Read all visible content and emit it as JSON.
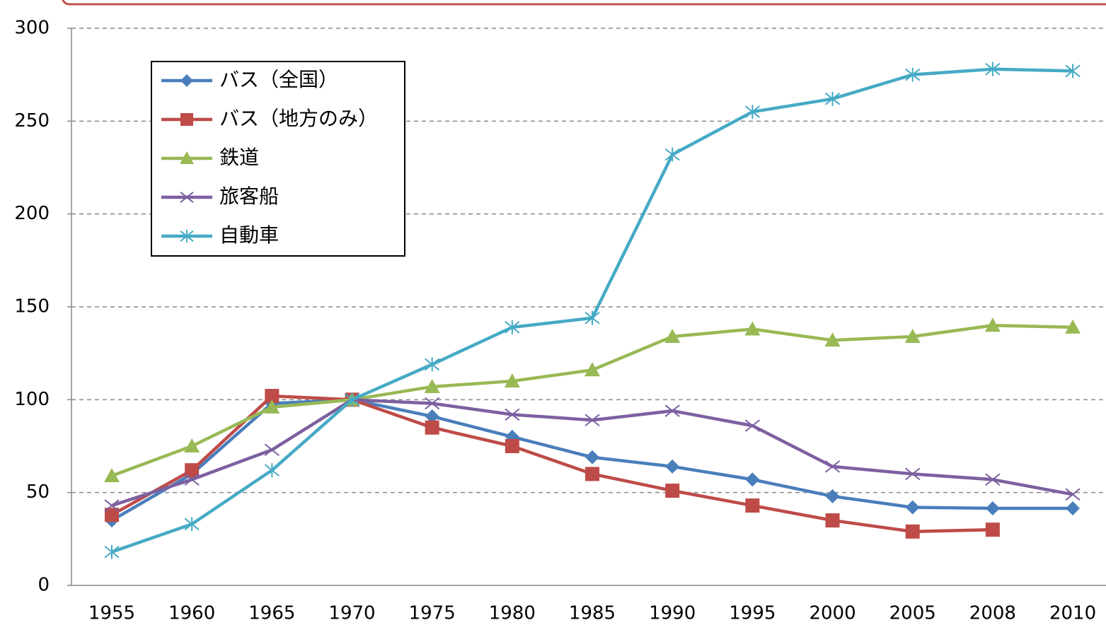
{
  "chart_data": {
    "type": "line",
    "categories": [
      "1955",
      "1960",
      "1965",
      "1970",
      "1975",
      "1980",
      "1985",
      "1990",
      "1995",
      "2000",
      "2005",
      "2008",
      "2010"
    ],
    "series": [
      {
        "name": "バス（全国）",
        "color": "#4a7ebb",
        "marker": "diamond",
        "values": [
          35,
          60,
          98,
          100,
          91,
          80,
          69,
          64,
          57,
          48,
          42,
          41.5,
          41.5
        ]
      },
      {
        "name": "バス（地方のみ）",
        "color": "#be4b48",
        "marker": "square",
        "values": [
          38,
          62,
          102,
          100,
          85,
          75,
          60,
          51,
          43,
          35,
          29,
          30,
          null
        ]
      },
      {
        "name": "鉄道",
        "color": "#98b954",
        "marker": "triangle",
        "values": [
          59,
          75,
          96,
          100,
          107,
          110,
          116,
          134,
          138,
          132,
          134,
          140,
          139
        ]
      },
      {
        "name": "旅客船",
        "color": "#7d60a0",
        "marker": "x",
        "values": [
          43,
          57,
          73,
          100,
          98,
          92,
          89,
          94,
          86,
          64,
          60,
          57,
          49
        ]
      },
      {
        "name": "自動車",
        "color": "#46aac5",
        "marker": "asterisk",
        "values": [
          18,
          33,
          62,
          100,
          119,
          139,
          144,
          232,
          255,
          262,
          275,
          278,
          277
        ]
      }
    ],
    "ylim": [
      0,
      300
    ],
    "yticks": [
      0,
      50,
      100,
      150,
      200,
      250,
      300
    ],
    "grid": true,
    "legend": "upper left"
  }
}
